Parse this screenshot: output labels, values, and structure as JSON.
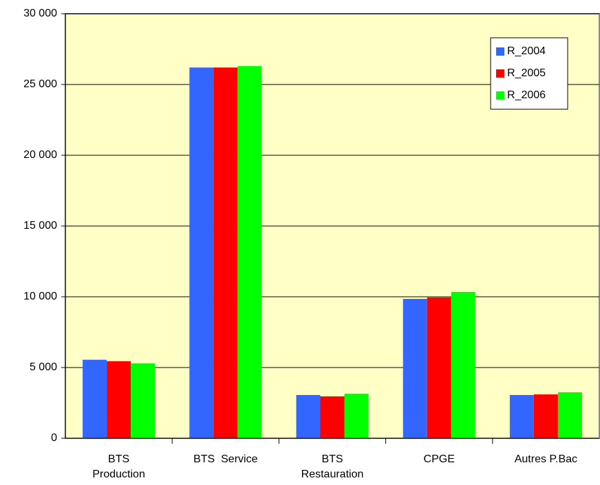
{
  "chart_data": {
    "type": "bar",
    "categories": [
      "BTS\nProduction",
      "BTS  Service",
      "BTS\nRestauration",
      "CPGE",
      "Autres P.Bac"
    ],
    "series": [
      {
        "name": "R_2004",
        "color": "#3366ff",
        "values": [
          5550,
          26200,
          3060,
          9850,
          3060
        ]
      },
      {
        "name": "R_2005",
        "color": "#ff0000",
        "values": [
          5450,
          26200,
          2960,
          9950,
          3100
        ]
      },
      {
        "name": "R_2006",
        "color": "#00ff00",
        "values": [
          5300,
          26300,
          3150,
          10340,
          3250
        ]
      }
    ],
    "ylim": [
      0,
      30000
    ],
    "yticks": [
      0,
      {
        "value": 5000,
        "label": "5 000"
      },
      {
        "value": 10000,
        "label": "10 000"
      },
      {
        "value": 15000,
        "label": "15 000"
      },
      {
        "value": 20000,
        "label": "20 000"
      },
      {
        "value": 25000,
        "label": "25 000"
      },
      {
        "value": 30000,
        "label": "30 000"
      }
    ],
    "grid": true,
    "legend": "top-right",
    "background": "#ffffc6"
  }
}
